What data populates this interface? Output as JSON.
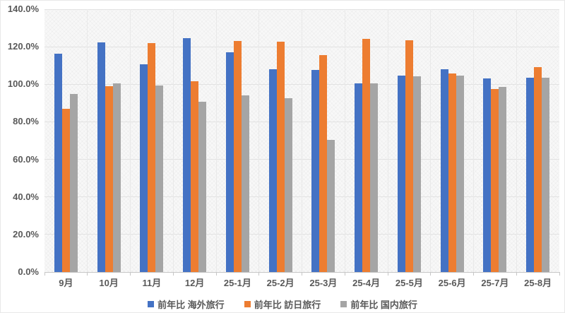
{
  "chart_data": {
    "type": "bar",
    "title": "",
    "xlabel": "",
    "ylabel": "",
    "ylim": [
      0,
      140
    ],
    "ytick_step": 20,
    "ytick_labels": [
      "0.0%",
      "20.0%",
      "40.0%",
      "60.0%",
      "80.0%",
      "100.0%",
      "120.0%",
      "140.0%"
    ],
    "grid": true,
    "legend_position": "bottom",
    "categories": [
      "9月",
      "10月",
      "11月",
      "12月",
      "25-1月",
      "25-2月",
      "25-3月",
      "25-4月",
      "25-5月",
      "25-6月",
      "25-7月",
      "25-8月"
    ],
    "series": [
      {
        "name": "前年比 海外旅行",
        "color": "#4472C4",
        "values": [
          116.4,
          122.5,
          110.6,
          124.5,
          117.2,
          108.1,
          107.6,
          100.4,
          104.7,
          108.1,
          103.0,
          103.4
        ]
      },
      {
        "name": "前年比 訪日旅行",
        "color": "#ED7D31",
        "values": [
          87.0,
          99.0,
          122.0,
          101.7,
          123.2,
          122.7,
          115.6,
          124.1,
          123.4,
          105.6,
          97.4,
          109.3
        ]
      },
      {
        "name": "前年比 国内旅行",
        "color": "#A5A5A5",
        "values": [
          94.8,
          100.5,
          99.5,
          90.7,
          94.1,
          92.5,
          70.5,
          100.5,
          104.3,
          104.5,
          98.6,
          103.5
        ]
      }
    ]
  },
  "colors": {
    "text": "#595959",
    "gridline": "#e2e2e2",
    "axis_line": "#c6c6c6",
    "background": "#ffffff"
  }
}
